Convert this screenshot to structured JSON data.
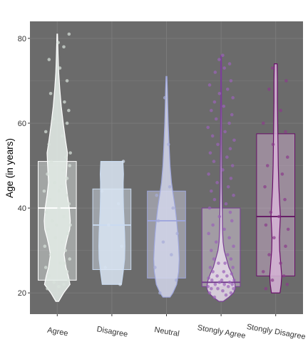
{
  "chart_data": {
    "type": "violin",
    "ylabel": "Age (in years)",
    "xlabel": "",
    "ylim": [
      15,
      84
    ],
    "yticks": [
      20,
      40,
      60,
      80
    ],
    "grid": true,
    "legend": "none",
    "panel_background": "#6b6b6b",
    "grid_color": "#7a7a7a",
    "categories": [
      "Agree",
      "Disagree",
      "Neutral",
      "Stongly Agree",
      "Stongly Disagree"
    ],
    "groups": [
      {
        "category": "Agree",
        "color": "#e6eeea",
        "min": 18,
        "q1": 23,
        "median": 40,
        "q3": 51,
        "max": 81,
        "density": [
          [
            18,
            0.1
          ],
          [
            20,
            0.45
          ],
          [
            22,
            0.9
          ],
          [
            24,
            0.78
          ],
          [
            26,
            0.62
          ],
          [
            29,
            0.48
          ],
          [
            31,
            0.58
          ],
          [
            33,
            0.72
          ],
          [
            35,
            0.88
          ],
          [
            37,
            0.92
          ],
          [
            40,
            0.85
          ],
          [
            43,
            0.72
          ],
          [
            46,
            0.62
          ],
          [
            50,
            0.68
          ],
          [
            53,
            0.72
          ],
          [
            56,
            0.58
          ],
          [
            60,
            0.42
          ],
          [
            64,
            0.28
          ],
          [
            68,
            0.18
          ],
          [
            72,
            0.1
          ],
          [
            76,
            0.06
          ],
          [
            81,
            0.02
          ]
        ],
        "points": [
          [
            21,
            -0.3
          ],
          [
            22,
            0.2
          ],
          [
            22.5,
            -0.1
          ],
          [
            23,
            0.35
          ],
          [
            21.5,
            0.05
          ],
          [
            24,
            -0.25
          ],
          [
            25,
            0.3
          ],
          [
            26,
            -0.35
          ],
          [
            27,
            0.1
          ],
          [
            28,
            0.38
          ],
          [
            29,
            -0.2
          ],
          [
            30,
            0.25
          ],
          [
            31,
            -0.38
          ],
          [
            32,
            0.15
          ],
          [
            33,
            -0.05
          ],
          [
            34,
            0.32
          ],
          [
            35,
            -0.28
          ],
          [
            36,
            0.4
          ],
          [
            37,
            -0.15
          ],
          [
            38,
            0.2
          ],
          [
            39,
            -0.33
          ],
          [
            40,
            0.05
          ],
          [
            41,
            0.36
          ],
          [
            42,
            -0.22
          ],
          [
            43,
            0.28
          ],
          [
            44,
            -0.4
          ],
          [
            45,
            0.12
          ],
          [
            46,
            -0.08
          ],
          [
            47,
            0.3
          ],
          [
            48,
            -0.3
          ],
          [
            49,
            0.18
          ],
          [
            50,
            0.38
          ],
          [
            51,
            -0.18
          ],
          [
            52,
            0.26
          ],
          [
            53,
            0.4
          ],
          [
            55,
            -0.25
          ],
          [
            57,
            0.15
          ],
          [
            58,
            -0.35
          ],
          [
            60,
            0.3
          ],
          [
            61,
            -0.12
          ],
          [
            63,
            0.35
          ],
          [
            65,
            0.22
          ],
          [
            67,
            -0.2
          ],
          [
            70,
            0.3
          ],
          [
            73,
            0.08
          ],
          [
            75,
            -0.25
          ],
          [
            78,
            0.2
          ],
          [
            79,
            0.03
          ],
          [
            81,
            0.36
          ],
          [
            36,
            -0.02
          ],
          [
            27,
            0.22
          ],
          [
            44,
            0.05
          ]
        ]
      },
      {
        "category": "Disagree",
        "color": "#dbe6f4",
        "min": 22,
        "q1": 25.5,
        "median": 36,
        "q3": 44.5,
        "max": 51,
        "density": [
          [
            22,
            0.68
          ],
          [
            25,
            0.8
          ],
          [
            28,
            0.9
          ],
          [
            31,
            0.92
          ],
          [
            34,
            0.9
          ],
          [
            37,
            0.86
          ],
          [
            40,
            0.82
          ],
          [
            43,
            0.8
          ],
          [
            46,
            0.8
          ],
          [
            48,
            0.82
          ],
          [
            51,
            0.78
          ]
        ],
        "points": [
          [
            22,
            0.25
          ],
          [
            26,
            -0.2
          ],
          [
            31,
            0.3
          ],
          [
            36,
            -0.1
          ],
          [
            41,
            0.2
          ],
          [
            44,
            -0.3
          ],
          [
            51,
            0.35
          ]
        ]
      },
      {
        "category": "Neutral",
        "color": "#d4d7ec",
        "min": 19,
        "q1": 23.5,
        "median": 37,
        "q3": 44,
        "max": 71,
        "density": [
          [
            19,
            0.25
          ],
          [
            20,
            0.45
          ],
          [
            22,
            0.72
          ],
          [
            25,
            0.86
          ],
          [
            28,
            0.9
          ],
          [
            31,
            0.86
          ],
          [
            34,
            0.8
          ],
          [
            37,
            0.72
          ],
          [
            40,
            0.62
          ],
          [
            43,
            0.48
          ],
          [
            46,
            0.35
          ],
          [
            50,
            0.25
          ],
          [
            55,
            0.18
          ],
          [
            60,
            0.12
          ],
          [
            65,
            0.08
          ],
          [
            68,
            0.06
          ],
          [
            71,
            0.03
          ]
        ],
        "points": [
          [
            20,
            -0.2
          ],
          [
            23,
            0.3
          ],
          [
            26,
            -0.35
          ],
          [
            29,
            0.15
          ],
          [
            32,
            -0.1
          ],
          [
            34,
            0.33
          ],
          [
            37,
            -0.25
          ],
          [
            40,
            0.2
          ],
          [
            43,
            -0.3
          ],
          [
            45,
            0.1
          ],
          [
            55,
            0.06
          ],
          [
            66,
            -0.05
          ]
        ]
      },
      {
        "category": "Stongly Agree",
        "color": "#e6daea",
        "min": 18,
        "q1": 21.5,
        "median": 22.5,
        "q3": 40,
        "max": 76,
        "density": [
          [
            18,
            0.15
          ],
          [
            19,
            0.55
          ],
          [
            20,
            0.88
          ],
          [
            21,
            1.0
          ],
          [
            22,
            0.98
          ],
          [
            23,
            0.92
          ],
          [
            24,
            0.82
          ],
          [
            25,
            0.7
          ],
          [
            26,
            0.55
          ],
          [
            28,
            0.38
          ],
          [
            30,
            0.22
          ],
          [
            32,
            0.14
          ],
          [
            35,
            0.1
          ],
          [
            40,
            0.08
          ],
          [
            45,
            0.06
          ],
          [
            50,
            0.05
          ],
          [
            55,
            0.04
          ],
          [
            60,
            0.035
          ],
          [
            65,
            0.03
          ],
          [
            70,
            0.025
          ],
          [
            74,
            0.03
          ],
          [
            76,
            0.015
          ]
        ],
        "points": [
          [
            19,
            -0.2
          ],
          [
            19.5,
            0.15
          ],
          [
            20,
            -0.35
          ],
          [
            20,
            0.3
          ],
          [
            20.5,
            0.05
          ],
          [
            21,
            -0.1
          ],
          [
            21,
            0.38
          ],
          [
            21,
            -0.3
          ],
          [
            21.5,
            0.22
          ],
          [
            21.5,
            -0.4
          ],
          [
            22,
            0.1
          ],
          [
            22,
            -0.18
          ],
          [
            22,
            0.34
          ],
          [
            22.5,
            -0.05
          ],
          [
            22.5,
            0.26
          ],
          [
            23,
            -0.28
          ],
          [
            23,
            0.4
          ],
          [
            23,
            0.02
          ],
          [
            23.5,
            -0.38
          ],
          [
            24,
            0.18
          ],
          [
            24,
            -0.12
          ],
          [
            24.5,
            0.32
          ],
          [
            25,
            -0.25
          ],
          [
            25,
            0.08
          ],
          [
            26,
            0.36
          ],
          [
            26,
            -0.33
          ],
          [
            27,
            0.12
          ],
          [
            27,
            -0.08
          ],
          [
            28,
            0.3
          ],
          [
            28,
            -0.22
          ],
          [
            29,
            0.2
          ],
          [
            30,
            -0.3
          ],
          [
            31,
            0.38
          ],
          [
            32,
            -0.15
          ],
          [
            33,
            0.25
          ],
          [
            34,
            -0.38
          ],
          [
            35,
            0.1
          ],
          [
            36,
            -0.25
          ],
          [
            37,
            0.33
          ],
          [
            38,
            -0.05
          ],
          [
            39,
            0.28
          ],
          [
            40,
            -0.35
          ],
          [
            41,
            0.15
          ],
          [
            42,
            -0.2
          ],
          [
            43,
            0.38
          ],
          [
            44,
            -0.3
          ],
          [
            45,
            0.22
          ],
          [
            46,
            -0.12
          ],
          [
            47,
            0.3
          ],
          [
            48,
            -0.38
          ],
          [
            49,
            0.05
          ],
          [
            50,
            0.35
          ],
          [
            51,
            -0.22
          ],
          [
            52,
            0.18
          ],
          [
            53,
            -0.33
          ],
          [
            54,
            0.28
          ],
          [
            55,
            -0.1
          ],
          [
            56,
            0.4
          ],
          [
            57,
            -0.26
          ],
          [
            58,
            0.12
          ],
          [
            59,
            -0.4
          ],
          [
            60,
            0.25
          ],
          [
            61,
            -0.15
          ],
          [
            62,
            0.33
          ],
          [
            63,
            -0.3
          ],
          [
            64,
            0.08
          ],
          [
            65,
            -0.2
          ],
          [
            66,
            0.36
          ],
          [
            67,
            -0.05
          ],
          [
            68,
            0.2
          ],
          [
            69,
            -0.35
          ],
          [
            70,
            0.3
          ],
          [
            72,
            -0.18
          ],
          [
            73,
            0.1
          ],
          [
            74,
            0.26
          ],
          [
            75,
            -0.06
          ],
          [
            76,
            0.05
          ]
        ]
      },
      {
        "category": "Stongly Disagree",
        "color": "#d7b5d7",
        "min": 20,
        "q1": 24,
        "median": 38,
        "q3": 57.5,
        "max": 74,
        "density": [
          [
            20,
            0.3
          ],
          [
            22,
            0.38
          ],
          [
            24,
            0.42
          ],
          [
            27,
            0.35
          ],
          [
            30,
            0.28
          ],
          [
            33,
            0.26
          ],
          [
            36,
            0.3
          ],
          [
            38,
            0.33
          ],
          [
            41,
            0.28
          ],
          [
            45,
            0.22
          ],
          [
            50,
            0.18
          ],
          [
            55,
            0.16
          ],
          [
            60,
            0.14
          ],
          [
            65,
            0.12
          ],
          [
            70,
            0.12
          ],
          [
            74,
            0.1
          ]
        ],
        "points": [
          [
            21,
            -0.3
          ],
          [
            22,
            0.35
          ],
          [
            23,
            -0.1
          ],
          [
            24,
            0.25
          ],
          [
            25,
            -0.38
          ],
          [
            27,
            0.15
          ],
          [
            29,
            -0.2
          ],
          [
            31,
            0.3
          ],
          [
            33,
            -0.05
          ],
          [
            35,
            0.38
          ],
          [
            36,
            -0.3
          ],
          [
            38,
            0.1
          ],
          [
            39,
            -0.15
          ],
          [
            42,
            0.28
          ],
          [
            45,
            -0.33
          ],
          [
            48,
            0.2
          ],
          [
            50,
            -0.25
          ],
          [
            52,
            0.36
          ],
          [
            55,
            -0.08
          ],
          [
            58,
            0.3
          ],
          [
            60,
            -0.38
          ],
          [
            63,
            0.15
          ],
          [
            68,
            -0.2
          ],
          [
            70,
            0.32
          ],
          [
            73,
            -0.1
          ]
        ]
      }
    ]
  }
}
